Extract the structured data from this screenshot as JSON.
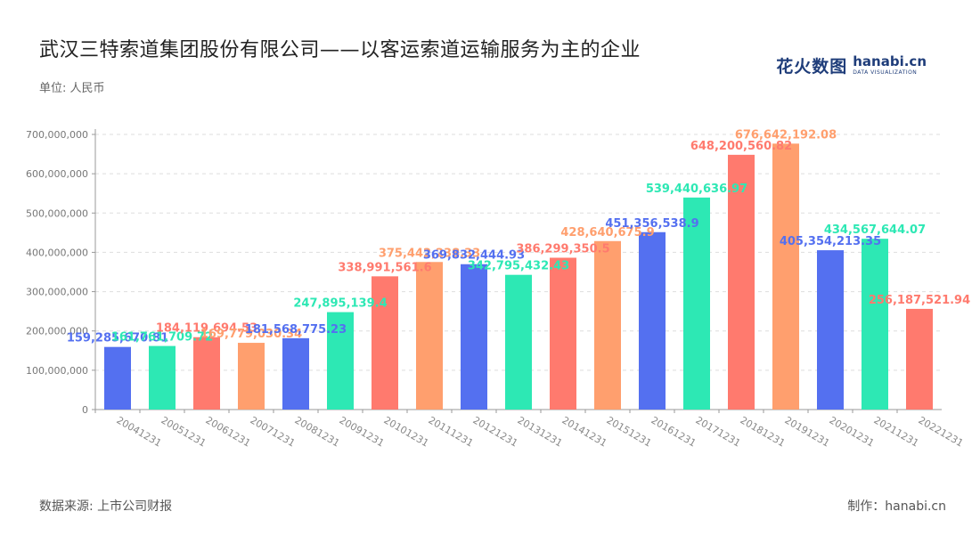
{
  "header": {
    "title": "武汉三特索道集团股份有限公司——以客运索道运输服务为主的企业",
    "unit": "单位: 人民币"
  },
  "logo": {
    "cn": "花火数图",
    "en": "hanabi.cn",
    "sub": "DATA VISUALIZATION"
  },
  "footer": {
    "source": "数据来源: 上市公司财报",
    "maker": "制作：hanabi.cn"
  },
  "colors": [
    "#5470f0",
    "#2de8b4",
    "#ff7a6e",
    "#ff9f6e"
  ],
  "chart_data": {
    "type": "bar",
    "categories": [
      "20041231",
      "20051231",
      "20061231",
      "20071231",
      "20081231",
      "20091231",
      "20101231",
      "20111231",
      "20121231",
      "20131231",
      "20141231",
      "20151231",
      "20161231",
      "20171231",
      "20181231",
      "20191231",
      "20201231",
      "20211231",
      "20221231"
    ],
    "values": [
      159285670.81,
      161761709.72,
      184119694.53,
      169779030.34,
      181568775.23,
      247895139.4,
      338991561.6,
      375442238.33,
      369832444.93,
      342795432.43,
      386299350.5,
      428640675.9,
      451356538.9,
      539440636.97,
      648200560.82,
      676642192.08,
      405354213.35,
      434567644.07,
      256187521.94
    ],
    "labels": [
      "159,285,670.81",
      "161,761,709.72",
      "184,119,694.53",
      "169,779,030.34",
      "181,568,775.23",
      "247,895,139.4",
      "338,991,561.6",
      "375,442,238.33",
      "369,832,444.93",
      "342,795,432.43",
      "386,299,350.5",
      "428,640,675.9",
      "451,356,538.9",
      "539,440,636.97",
      "648,200,560.82",
      "676,642,192.08",
      "405,354,213.35",
      "434,567,644.07",
      "256,187,521.94"
    ],
    "yticks": [
      "0",
      "100,000,000",
      "200,000,000",
      "300,000,000",
      "400,000,000",
      "500,000,000",
      "600,000,000",
      "700,000,000"
    ],
    "ylim": [
      0,
      700000000
    ],
    "grid": true
  }
}
